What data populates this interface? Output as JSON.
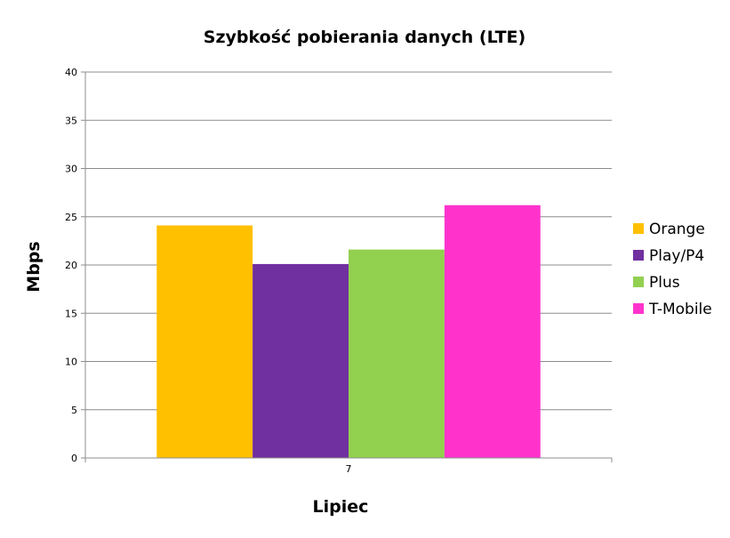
{
  "chart_data": {
    "type": "bar",
    "title": "Szybkość pobierania danych (LTE)",
    "xlabel": "Lipiec",
    "ylabel": "Mbps",
    "categories": [
      "7"
    ],
    "ylim": [
      0,
      40
    ],
    "yticks": [
      0,
      5,
      10,
      15,
      20,
      25,
      30,
      35,
      40
    ],
    "grid": true,
    "legend_position": "right",
    "series": [
      {
        "name": "Orange",
        "values": [
          24.1
        ],
        "color": "#FFC000"
      },
      {
        "name": "Play/P4",
        "values": [
          20.1
        ],
        "color": "#7030A0"
      },
      {
        "name": "Plus",
        "values": [
          21.6
        ],
        "color": "#92D050"
      },
      {
        "name": "T-Mobile",
        "values": [
          26.2
        ],
        "color": "#FF33CC"
      }
    ]
  }
}
